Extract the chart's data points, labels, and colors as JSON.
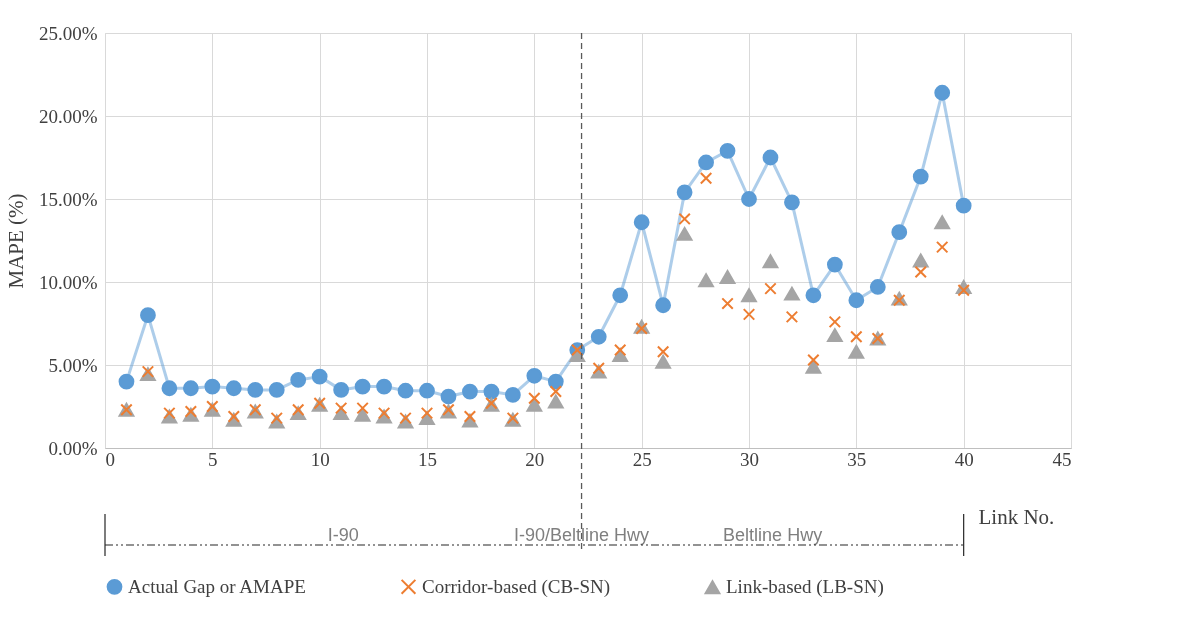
{
  "chart_data": {
    "type": "line",
    "xlabel": "Link No.",
    "ylabel": "MAPE (%)",
    "x": [
      1,
      2,
      3,
      4,
      5,
      6,
      7,
      8,
      9,
      10,
      11,
      12,
      13,
      14,
      15,
      16,
      17,
      18,
      19,
      20,
      21,
      22,
      23,
      24,
      25,
      26,
      27,
      28,
      29,
      30,
      31,
      32,
      33,
      34,
      35,
      36,
      37,
      38,
      39,
      40
    ],
    "series": [
      {
        "name": "Actual Gap or AMAPE",
        "marker": "circle",
        "color": "#5b9bd5",
        "values": [
          4.0,
          8.0,
          3.6,
          3.6,
          3.7,
          3.6,
          3.5,
          3.5,
          4.1,
          4.3,
          3.5,
          3.7,
          3.7,
          3.45,
          3.45,
          3.1,
          3.4,
          3.4,
          3.2,
          4.35,
          4.0,
          5.9,
          6.7,
          9.2,
          13.6,
          8.6,
          15.4,
          17.2,
          17.9,
          15.0,
          17.5,
          14.8,
          9.2,
          11.05,
          8.9,
          9.7,
          13.0,
          16.35,
          21.4,
          14.6
        ]
      },
      {
        "name": "Corridor-based (CB-SN)",
        "type": "scatter",
        "marker": "cross",
        "color": "#ed7d31",
        "values": [
          2.3,
          4.6,
          2.1,
          2.2,
          2.5,
          1.9,
          2.3,
          1.8,
          2.3,
          2.7,
          2.4,
          2.4,
          2.1,
          1.8,
          2.1,
          2.3,
          1.9,
          2.7,
          1.8,
          3.0,
          3.4,
          5.9,
          4.8,
          5.9,
          7.2,
          5.8,
          13.8,
          16.25,
          8.7,
          8.05,
          9.6,
          7.9,
          5.3,
          7.6,
          6.7,
          6.6,
          8.9,
          10.6,
          12.1,
          9.5
        ]
      },
      {
        "name": "Link-based (LB-SN)",
        "type": "scatter",
        "marker": "triangle",
        "color": "#a5a5a5",
        "values": [
          2.3,
          4.45,
          1.9,
          2.0,
          2.3,
          1.7,
          2.2,
          1.6,
          2.1,
          2.6,
          2.1,
          2.0,
          1.9,
          1.6,
          1.8,
          2.2,
          1.65,
          2.6,
          1.7,
          2.6,
          2.8,
          5.6,
          4.6,
          5.6,
          7.3,
          5.2,
          12.9,
          10.1,
          10.3,
          9.2,
          11.25,
          9.3,
          4.9,
          6.8,
          5.8,
          6.6,
          9.0,
          11.3,
          13.6,
          9.7
        ]
      }
    ],
    "xlim": [
      0,
      45
    ],
    "xticks": [
      0,
      5,
      10,
      15,
      20,
      25,
      30,
      35,
      40,
      45
    ],
    "ylim": [
      0,
      25
    ],
    "yticks": [
      {
        "value": 0,
        "label": "0.00%"
      },
      {
        "value": 5,
        "label": "5.00%"
      },
      {
        "value": 10,
        "label": "10.00%"
      },
      {
        "value": 15,
        "label": "15.00%"
      },
      {
        "value": 20,
        "label": "20.00%"
      },
      {
        "value": 25,
        "label": "25.00%"
      }
    ],
    "ref_lines": [
      {
        "axis": "x",
        "value": 22.2,
        "color": "#595959",
        "line_style": "dashed"
      }
    ],
    "annotations": [
      "I-90",
      "I-90/Beltline Hwy",
      "Beltline Hwy"
    ],
    "grid": true,
    "legend": "bottom"
  }
}
